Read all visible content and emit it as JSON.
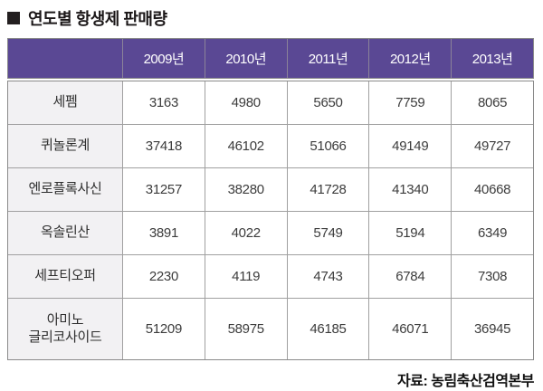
{
  "page": {
    "title_bullet": "■",
    "title": "연도별 항생제 판매량",
    "source": "자료: 농림축산검역본부"
  },
  "colors": {
    "header_bg": "#5a4894",
    "header_text": "#ffffff",
    "label_col_bg": "#f2f1f3",
    "grid_line": "#a0a0a0",
    "outer_border": "#8a8a8a",
    "title_color": "#1b1718"
  },
  "chart_data": {
    "type": "table",
    "title": "연도별 항생제 판매량",
    "columns": [
      "",
      "2009년",
      "2010년",
      "2011년",
      "2012년",
      "2013년"
    ],
    "rows": [
      {
        "label": "세펨",
        "values": [
          3163,
          4980,
          5650,
          7759,
          8065
        ]
      },
      {
        "label": "퀴놀론계",
        "values": [
          37418,
          46102,
          51066,
          49149,
          49727
        ]
      },
      {
        "label": "엔로플록사신",
        "values": [
          31257,
          38280,
          41728,
          41340,
          40668
        ]
      },
      {
        "label": "옥솔린산",
        "values": [
          3891,
          4022,
          5749,
          5194,
          6349
        ]
      },
      {
        "label": "세프티오퍼",
        "values": [
          2230,
          4119,
          4743,
          6784,
          7308
        ]
      },
      {
        "label": "아미노\n글리코사이드",
        "values": [
          51209,
          58975,
          46185,
          46071,
          36945
        ]
      }
    ],
    "source": "자료: 농림축산검역본부"
  }
}
